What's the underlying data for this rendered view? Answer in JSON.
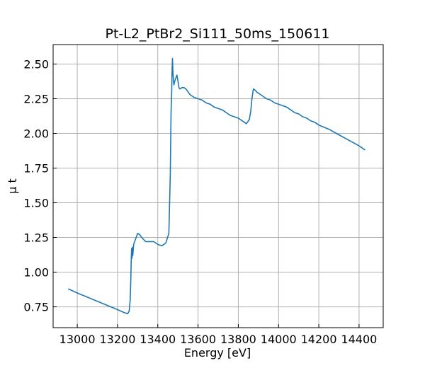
{
  "chart_data": {
    "type": "line",
    "title": "Pt-L2_PtBr2_Si111_50ms_150611",
    "xlabel": "Energy [eV]",
    "ylabel": "μ t",
    "xlim": [
      12880,
      14520
    ],
    "ylim": [
      0.6,
      2.64
    ],
    "xticks": [
      13000,
      13200,
      13400,
      13600,
      13800,
      14000,
      14200,
      14400
    ],
    "xtick_labels": [
      "13000",
      "13200",
      "13400",
      "13600",
      "13800",
      "14000",
      "14200",
      "14400"
    ],
    "yticks": [
      0.75,
      1.0,
      1.25,
      1.5,
      1.75,
      2.0,
      2.25,
      2.5
    ],
    "ytick_labels": [
      "0.75",
      "1.00",
      "1.25",
      "1.50",
      "1.75",
      "2.00",
      "2.25",
      "2.50"
    ],
    "grid": true,
    "series": [
      {
        "color": "#1f77b4",
        "x": [
          12955,
          13000,
          13050,
          13100,
          13150,
          13200,
          13230,
          13250,
          13258,
          13263,
          13266,
          13268,
          13270,
          13272,
          13274,
          13276,
          13280,
          13290,
          13300,
          13310,
          13320,
          13340,
          13360,
          13380,
          13400,
          13420,
          13440,
          13455,
          13462,
          13466,
          13469,
          13471,
          13473,
          13475,
          13478,
          13480,
          13485,
          13490,
          13495,
          13500,
          13505,
          13510,
          13520,
          13530,
          13540,
          13550,
          13560,
          13580,
          13600,
          13620,
          13640,
          13660,
          13680,
          13700,
          13720,
          13740,
          13760,
          13780,
          13800,
          13820,
          13840,
          13855,
          13862,
          13868,
          13875,
          13885,
          13890,
          13900,
          13920,
          13940,
          13960,
          13980,
          14000,
          14020,
          14040,
          14060,
          14080,
          14100,
          14120,
          14140,
          14160,
          14180,
          14200,
          14250,
          14300,
          14350,
          14400,
          14430
        ],
        "y": [
          0.88,
          0.85,
          0.82,
          0.79,
          0.76,
          0.73,
          0.71,
          0.7,
          0.72,
          0.8,
          0.95,
          1.08,
          1.17,
          1.1,
          1.18,
          1.12,
          1.2,
          1.24,
          1.28,
          1.27,
          1.25,
          1.22,
          1.22,
          1.22,
          1.2,
          1.19,
          1.21,
          1.28,
          1.7,
          2.15,
          2.3,
          2.45,
          2.54,
          2.45,
          2.38,
          2.35,
          2.38,
          2.4,
          2.42,
          2.38,
          2.33,
          2.32,
          2.33,
          2.33,
          2.32,
          2.3,
          2.28,
          2.26,
          2.25,
          2.24,
          2.22,
          2.21,
          2.19,
          2.18,
          2.17,
          2.15,
          2.13,
          2.12,
          2.11,
          2.09,
          2.07,
          2.1,
          2.16,
          2.25,
          2.32,
          2.31,
          2.3,
          2.29,
          2.27,
          2.25,
          2.24,
          2.22,
          2.21,
          2.2,
          2.19,
          2.17,
          2.15,
          2.14,
          2.12,
          2.11,
          2.09,
          2.08,
          2.06,
          2.03,
          1.99,
          1.95,
          1.91,
          1.88
        ]
      }
    ]
  }
}
